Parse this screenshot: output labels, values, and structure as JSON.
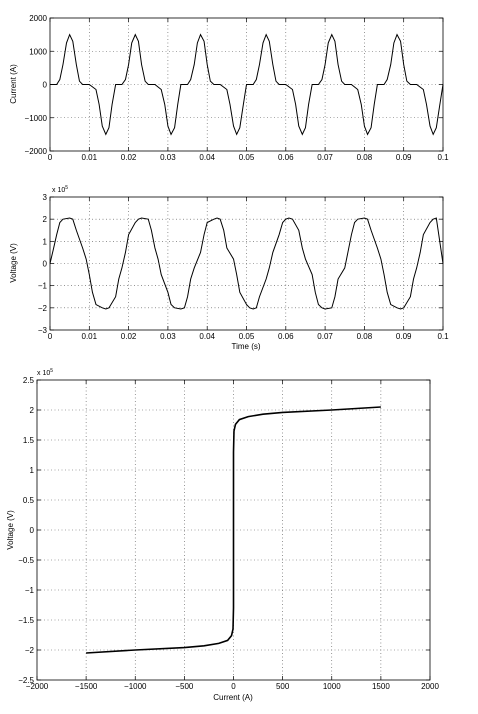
{
  "chart_data": [
    {
      "type": "line",
      "ylabel": "Current (A)",
      "xlabel": "",
      "xlim": [
        0,
        0.1
      ],
      "ylim": [
        -2000,
        2000
      ],
      "grid": true,
      "xticks": [
        0,
        0.01,
        0.02,
        0.03,
        0.04,
        0.05,
        0.06,
        0.07,
        0.08,
        0.09,
        0.1
      ],
      "xticklabels": [
        "0",
        "0.01",
        "0.02",
        "0.03",
        "0.04",
        "0.05",
        "0.06",
        "0.07",
        "0.08",
        "0.09",
        "0.1"
      ],
      "yticks": [
        -2000,
        -1000,
        0,
        1000,
        2000
      ],
      "yticklabels": [
        "−2000",
        "−1000",
        "0",
        "1000",
        "2000"
      ],
      "series": [
        {
          "x": [
            0,
            0.0017,
            0.0025,
            0.0033,
            0.0042,
            0.005,
            0.0058,
            0.0067,
            0.0075,
            0.0083,
            0.01,
            0.0117,
            0.0125,
            0.0133,
            0.0142,
            0.015,
            0.0158,
            0.0167,
            0.0183,
            0.0192,
            0.02,
            0.0208,
            0.0217,
            0.0225,
            0.0233,
            0.0242,
            0.025,
            0.0267,
            0.0283,
            0.0292,
            0.03,
            0.0308,
            0.0317,
            0.0325,
            0.0333,
            0.035,
            0.0358,
            0.0367,
            0.0375,
            0.0383,
            0.0392,
            0.04,
            0.0408,
            0.0417,
            0.0433,
            0.045,
            0.0458,
            0.0467,
            0.0475,
            0.0483,
            0.0492,
            0.05,
            0.0517,
            0.0525,
            0.0533,
            0.0542,
            0.055,
            0.0558,
            0.0567,
            0.0575,
            0.0583,
            0.06,
            0.0617,
            0.0625,
            0.0633,
            0.0642,
            0.065,
            0.0658,
            0.0667,
            0.0683,
            0.0692,
            0.07,
            0.0708,
            0.0717,
            0.0725,
            0.0733,
            0.0742,
            0.075,
            0.0767,
            0.0783,
            0.0792,
            0.08,
            0.0808,
            0.0817,
            0.0825,
            0.0833,
            0.085,
            0.0858,
            0.0867,
            0.0875,
            0.0883,
            0.0892,
            0.09,
            0.0908,
            0.0917,
            0.0933,
            0.095,
            0.0958,
            0.0967,
            0.0975,
            0.0983,
            0.0992,
            0.1
          ],
          "y": [
            0,
            0,
            150,
            600,
            1250,
            1500,
            1300,
            600,
            100,
            0,
            0,
            -150,
            -600,
            -1250,
            -1500,
            -1300,
            -600,
            0,
            0,
            150,
            600,
            1250,
            1500,
            1300,
            600,
            100,
            0,
            0,
            -150,
            -600,
            -1250,
            -1500,
            -1300,
            -600,
            0,
            0,
            150,
            600,
            1250,
            1500,
            1300,
            600,
            100,
            0,
            0,
            -150,
            -600,
            -1250,
            -1500,
            -1300,
            -600,
            0,
            0,
            150,
            600,
            1250,
            1500,
            1300,
            600,
            100,
            0,
            0,
            -150,
            -600,
            -1250,
            -1500,
            -1300,
            -600,
            0,
            0,
            150,
            600,
            1250,
            1500,
            1300,
            600,
            100,
            0,
            0,
            -150,
            -600,
            -1250,
            -1500,
            -1300,
            -600,
            0,
            0,
            150,
            600,
            1250,
            1500,
            1300,
            600,
            100,
            0,
            0,
            -150,
            -600,
            -1250,
            -1500,
            -1300,
            -600,
            0
          ]
        }
      ]
    },
    {
      "type": "line",
      "ylabel": "Voltage (V)",
      "xlabel": "Time (s)",
      "exponent_base": "x 10",
      "exponent_power": "5",
      "xlim": [
        0,
        0.1
      ],
      "ylim": [
        -3,
        3
      ],
      "grid": true,
      "xticks": [
        0,
        0.01,
        0.02,
        0.03,
        0.04,
        0.05,
        0.06,
        0.07,
        0.08,
        0.09,
        0.1
      ],
      "xticklabels": [
        "0",
        "0.01",
        "0.02",
        "0.03",
        "0.04",
        "0.05",
        "0.06",
        "0.07",
        "0.08",
        "0.09",
        "0.1"
      ],
      "yticks": [
        -3,
        -2,
        -1,
        0,
        1,
        2,
        3
      ],
      "yticklabels": [
        "−3",
        "−2",
        "−1",
        "0",
        "1",
        "2",
        "3"
      ],
      "series": [
        {
          "x": [
            0,
            0.0008,
            0.0017,
            0.0025,
            0.0033,
            0.005,
            0.0058,
            0.0067,
            0.0083,
            0.0092,
            0.01,
            0.0108,
            0.0117,
            0.0133,
            0.0142,
            0.015,
            0.0167,
            0.0175,
            0.0183,
            0.0192,
            0.02,
            0.0217,
            0.0225,
            0.0233,
            0.025,
            0.0258,
            0.0267,
            0.0275,
            0.0283,
            0.03,
            0.0308,
            0.0317,
            0.0333,
            0.0342,
            0.035,
            0.0358,
            0.0367,
            0.0383,
            0.0392,
            0.04,
            0.0417,
            0.0425,
            0.0433,
            0.0442,
            0.045,
            0.0467,
            0.0475,
            0.0483,
            0.05,
            0.0508,
            0.0517,
            0.0525,
            0.0533,
            0.055,
            0.0558,
            0.0567,
            0.0583,
            0.0592,
            0.06,
            0.0608,
            0.0617,
            0.0633,
            0.0642,
            0.065,
            0.0667,
            0.0675,
            0.0683,
            0.0692,
            0.07,
            0.0717,
            0.0725,
            0.0733,
            0.075,
            0.0758,
            0.0767,
            0.0775,
            0.0783,
            0.08,
            0.0808,
            0.0817,
            0.0833,
            0.0842,
            0.085,
            0.0858,
            0.0867,
            0.0883,
            0.0892,
            0.09,
            0.0917,
            0.0925,
            0.0933,
            0.0942,
            0.095,
            0.0967,
            0.0975,
            0.0983,
            0.1
          ],
          "y": [
            0,
            0.6,
            1.3,
            1.85,
            2.0,
            2.05,
            2.0,
            1.5,
            0.7,
            0.2,
            -0.5,
            -1.3,
            -1.85,
            -2.0,
            -2.05,
            -2.0,
            -1.5,
            -0.7,
            -0.2,
            0.5,
            1.3,
            1.85,
            2.0,
            2.05,
            2.0,
            1.5,
            0.7,
            0.2,
            -0.5,
            -1.3,
            -1.85,
            -2.0,
            -2.05,
            -2.0,
            -1.5,
            -0.7,
            -0.2,
            0.5,
            1.3,
            1.85,
            2.0,
            2.05,
            2.0,
            1.5,
            0.7,
            0.2,
            -0.5,
            -1.3,
            -1.85,
            -2.0,
            -2.05,
            -2.0,
            -1.5,
            -0.7,
            -0.2,
            0.5,
            1.3,
            1.85,
            2.0,
            2.05,
            2.0,
            1.5,
            0.7,
            0.2,
            -0.5,
            -1.3,
            -1.85,
            -2.0,
            -2.05,
            -2.0,
            -1.5,
            -0.7,
            -0.2,
            0.5,
            1.3,
            1.85,
            2.0,
            2.05,
            2.0,
            1.5,
            0.7,
            0.2,
            -0.5,
            -1.3,
            -1.85,
            -2.0,
            -2.05,
            -2.0,
            -1.5,
            -0.7,
            -0.2,
            0.5,
            1.3,
            1.85,
            2.0,
            2.05,
            0.0
          ]
        }
      ]
    },
    {
      "type": "line",
      "ylabel": "Voltage (V)",
      "xlabel": "Current (A)",
      "exponent_base": "x 10",
      "exponent_power": "5",
      "xlim": [
        -2000,
        2000
      ],
      "ylim": [
        -2.5,
        2.5
      ],
      "grid": true,
      "xticks": [
        -2000,
        -1500,
        -1000,
        -500,
        0,
        500,
        1000,
        1500,
        2000
      ],
      "xticklabels": [
        "−2000",
        "−1500",
        "−1000",
        "−500",
        "0",
        "500",
        "1000",
        "1500",
        "2000"
      ],
      "yticks": [
        -2.5,
        -2,
        -1.5,
        -1,
        -0.5,
        0,
        0.5,
        1,
        1.5,
        2,
        2.5
      ],
      "yticklabels": [
        "−2.5",
        "−2",
        "−1.5",
        "−1",
        "−0.5",
        "0",
        "0.5",
        "1",
        "1.5",
        "2",
        "2.5"
      ],
      "series": [
        {
          "x": [
            -1500,
            -1000,
            -500,
            -300,
            -150,
            -60,
            -20,
            -5,
            0,
            0,
            0,
            5,
            20,
            60,
            150,
            300,
            500,
            1000,
            1500
          ],
          "y": [
            -2.05,
            -2.0,
            -1.96,
            -1.93,
            -1.89,
            -1.84,
            -1.76,
            -1.65,
            -1.3,
            0,
            1.3,
            1.65,
            1.76,
            1.84,
            1.89,
            1.93,
            1.96,
            2.0,
            2.05
          ]
        }
      ]
    }
  ]
}
